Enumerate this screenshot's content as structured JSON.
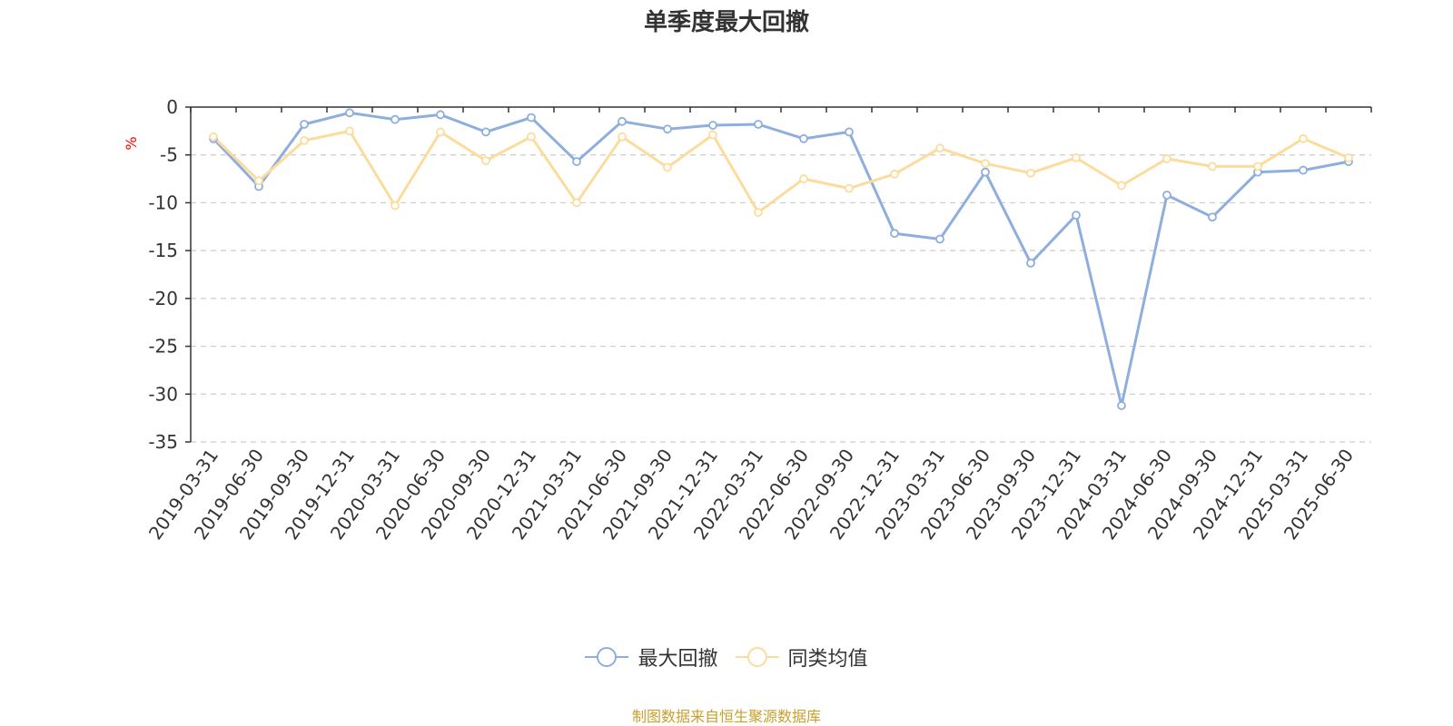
{
  "chart_data": {
    "type": "line",
    "title": "单季度最大回撤",
    "ylabel": "%",
    "xlabel": "",
    "ylim": [
      -35,
      0
    ],
    "yticks": [
      0,
      -5,
      -10,
      -15,
      -20,
      -25,
      -30,
      -35
    ],
    "grid": true,
    "legend_position": "bottom",
    "categories": [
      "2019-03-31",
      "2019-06-30",
      "2019-09-30",
      "2019-12-31",
      "2020-03-31",
      "2020-06-30",
      "2020-09-30",
      "2020-12-31",
      "2021-03-31",
      "2021-06-30",
      "2021-09-30",
      "2021-12-31",
      "2022-03-31",
      "2022-06-30",
      "2022-09-30",
      "2022-12-31",
      "2023-03-31",
      "2023-06-30",
      "2023-09-30",
      "2023-12-31",
      "2024-03-31",
      "2024-06-30",
      "2024-09-30",
      "2024-12-31",
      "2025-03-31",
      "2025-06-30"
    ],
    "series": [
      {
        "name": "最大回撤",
        "color": "#8eaede",
        "values": [
          -3.3,
          -8.3,
          -1.8,
          -0.6,
          -1.3,
          -0.8,
          -2.6,
          -1.1,
          -5.7,
          -1.5,
          -2.3,
          -1.9,
          -1.8,
          -3.3,
          -2.6,
          -13.2,
          -13.8,
          -6.8,
          -16.3,
          -11.3,
          -31.2,
          -9.2,
          -11.5,
          -6.8,
          -6.6,
          -5.7
        ]
      },
      {
        "name": "同类均值",
        "color": "#fcdc9c",
        "values": [
          -3.1,
          -7.7,
          -3.5,
          -2.5,
          -10.3,
          -2.6,
          -5.6,
          -3.1,
          -10.0,
          -3.1,
          -6.3,
          -2.9,
          -11.0,
          -7.5,
          -8.5,
          -7.0,
          -4.3,
          -5.9,
          -6.9,
          -5.3,
          -8.2,
          -5.4,
          -6.2,
          -6.2,
          -3.3,
          -5.3
        ]
      }
    ]
  },
  "source_note": "制图数据来自恒生聚源数据库",
  "colors": {
    "axis": "#333333",
    "grid": "#cccccc",
    "ylabel": "#ff0000",
    "source": "#c8a02c"
  }
}
